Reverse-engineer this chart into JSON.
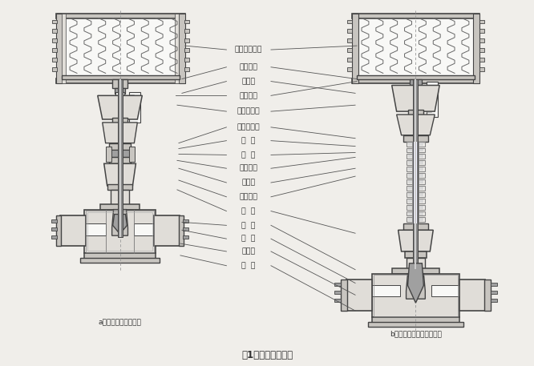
{
  "title": "图1、调节阀结构图",
  "bg_color": "#f0eeea",
  "left_label": "a、普通型气动调节阀",
  "right_label": "b、波纹管密封气动调节阀",
  "annotations": [
    "气动执行机构",
    "六角螺母",
    "拨针盘",
    "行程标尺",
    "执行器支架",
    "波纹管上盖",
    "压  盖",
    "填  料",
    "螺丝螺母",
    "波纹管",
    "四氟套管",
    "上  盖",
    "阀  芯",
    "阀  座",
    "衬里层",
    "阀  体"
  ],
  "lc": "#444444",
  "tc": "#333333",
  "fc_light": "#e0ddd8",
  "fc_mid": "#c8c5c0",
  "fc_dark": "#a0a0a0",
  "fc_white": "#f8f8f6",
  "fc_hatch": "#b0aca8"
}
